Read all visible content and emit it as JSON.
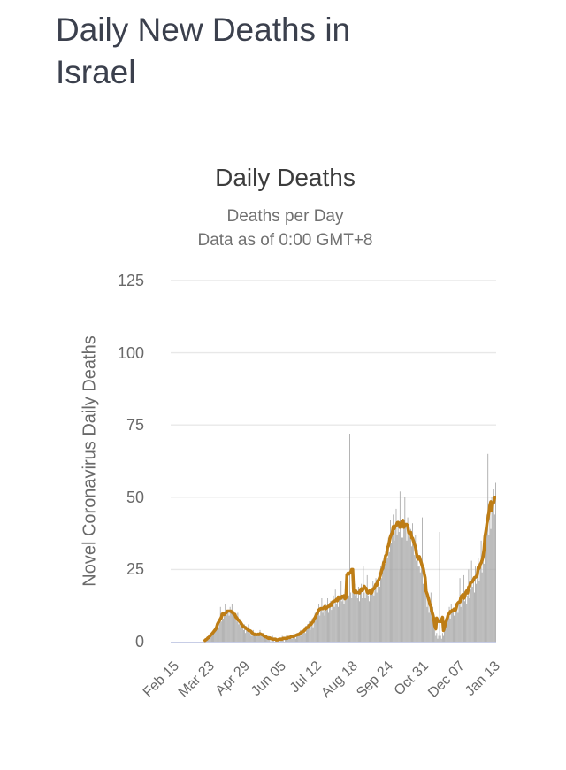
{
  "page": {
    "title": "Daily New Deaths in Israel"
  },
  "colors": {
    "page_title": "#3B404D",
    "chart_title": "#3C3C3C",
    "subtitle": "#717171",
    "axis_text": "#696969",
    "bars": "#A6A6A6",
    "line": "#BE7D15",
    "grid": "#E8E8E8",
    "baseline": "#C7CDE6"
  },
  "chart_data": {
    "type": "bar",
    "title": "Daily Deaths",
    "subtitle": "Deaths per Day",
    "data_note": "Data as of 0:00 GMT+8",
    "ylabel": "Novel Coronavirus Daily Deaths",
    "xlabel": "",
    "ylim": [
      0,
      125
    ],
    "y_ticks": [
      0,
      25,
      50,
      75,
      100,
      125
    ],
    "grid": true,
    "legend": "none",
    "x_start_label": "Feb 15",
    "x_tick_labels": [
      "Feb 15",
      "Mar 23",
      "Apr 29",
      "Jun 05",
      "Jul 12",
      "Aug 18",
      "Sep 24",
      "Oct 31",
      "Dec 07",
      "Jan 13"
    ],
    "x_tick_day_index": [
      0,
      37,
      74,
      111,
      148,
      185,
      222,
      259,
      296,
      333
    ],
    "series": [
      {
        "name": "daily-deaths",
        "type": "bar",
        "color": "#A6A6A6",
        "values": [
          0,
          0,
          0,
          0,
          0,
          0,
          0,
          0,
          0,
          0,
          0,
          0,
          0,
          0,
          0,
          0,
          0,
          0,
          0,
          0,
          0,
          0,
          0,
          0,
          0,
          0,
          0,
          0,
          0,
          0,
          0,
          0,
          0,
          0,
          0,
          1,
          0,
          1,
          1,
          2,
          1,
          3,
          2,
          3,
          4,
          3,
          5,
          4,
          6,
          5,
          8,
          12,
          7,
          9,
          8,
          10,
          13,
          9,
          10,
          11,
          9,
          12,
          10,
          13,
          9,
          10,
          8,
          9,
          7,
          10,
          6,
          8,
          5,
          7,
          6,
          4,
          6,
          3,
          5,
          4,
          6,
          3,
          4,
          2,
          3,
          4,
          2,
          3,
          1,
          2,
          3,
          2,
          4,
          3,
          2,
          3,
          1,
          2,
          1,
          2,
          1,
          2,
          1,
          0,
          1,
          2,
          1,
          0,
          1,
          1,
          0,
          1,
          0,
          1,
          1,
          2,
          1,
          0,
          1,
          2,
          1,
          1,
          2,
          1,
          2,
          1,
          2,
          3,
          2,
          1,
          2,
          3,
          2,
          3,
          4,
          2,
          3,
          4,
          5,
          3,
          4,
          6,
          5,
          7,
          4,
          6,
          8,
          5,
          7,
          10,
          8,
          11,
          9,
          13,
          9,
          12,
          15,
          10,
          12,
          9,
          13,
          11,
          15,
          10,
          12,
          14,
          11,
          13,
          16,
          12,
          18,
          13,
          15,
          12,
          16,
          13,
          21,
          14,
          16,
          13,
          17,
          15,
          15,
          14,
          16,
          72,
          17,
          15,
          18,
          17,
          20,
          16,
          18,
          15,
          19,
          14,
          17,
          20,
          15,
          26,
          17,
          15,
          18,
          23,
          16,
          14,
          17,
          15,
          18,
          21,
          16,
          19,
          22,
          17,
          20,
          24,
          19,
          26,
          22,
          28,
          25,
          30,
          27,
          33,
          29,
          36,
          31,
          42,
          34,
          38,
          44,
          35,
          40,
          46,
          37,
          40,
          38,
          52,
          36,
          38,
          36,
          42,
          50,
          40,
          35,
          43,
          38,
          36,
          39,
          33,
          41,
          35,
          30,
          37,
          28,
          32,
          26,
          26,
          24,
          27,
          43,
          20,
          25,
          18,
          21,
          12,
          16,
          10,
          14,
          17,
          9,
          12,
          7,
          4,
          2,
          3,
          1,
          2,
          38,
          2,
          1,
          3,
          2,
          5,
          8,
          6,
          10,
          9,
          12,
          8,
          13,
          10,
          11,
          9,
          13,
          11,
          12,
          10,
          14,
          22,
          12,
          15,
          11,
          23,
          14,
          17,
          13,
          16,
          25,
          15,
          18,
          28,
          19,
          22,
          17,
          26,
          20,
          23,
          29,
          21,
          26,
          35,
          24,
          29,
          27,
          36,
          30,
          44,
          65,
          37,
          47,
          39,
          50,
          48,
          53,
          44,
          55
        ]
      },
      {
        "name": "7-day-average",
        "type": "line",
        "color": "#BE7D15",
        "derived_from": "centered 7-day moving average of daily-deaths"
      }
    ]
  }
}
